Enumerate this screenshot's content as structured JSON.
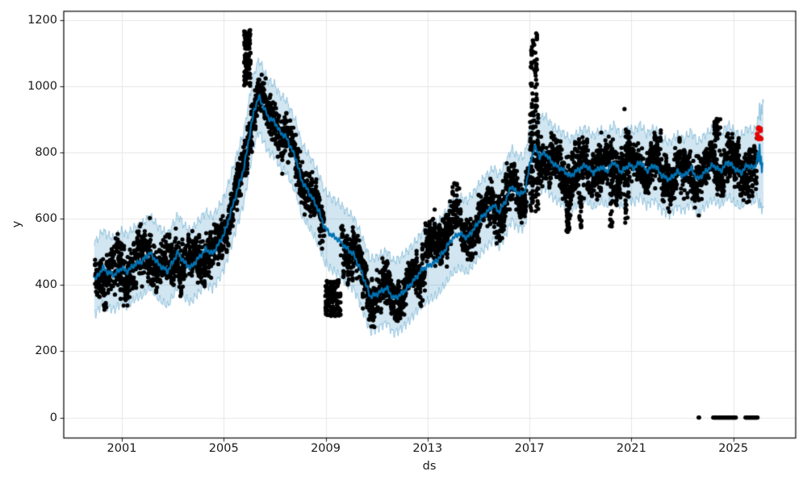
{
  "chart_data": {
    "type": "scatter",
    "title": "",
    "xlabel": "ds",
    "ylabel": "y",
    "x_ticks": [
      2001,
      2005,
      2009,
      2013,
      2017,
      2021,
      2025
    ],
    "y_ticks": [
      0,
      200,
      400,
      600,
      800,
      1000,
      1200
    ],
    "x_range": [
      1998.72,
      2027.45
    ],
    "y_range": [
      -62,
      1226
    ],
    "grid": true,
    "legend": null,
    "history_start": 1999.92,
    "history_end": 2025.93,
    "forecast_end": 2026.15,
    "band_end": 2026.2,
    "seed": 11,
    "marker_radius": 2.6,
    "anomaly_radius": 3.0,
    "colors": {
      "line": "#0072B2",
      "band_fill": "rgba(0,114,178,0.18)",
      "band_edge": "rgba(0,114,178,0.32)",
      "dots": "#000000",
      "anomaly": "#e60000",
      "grid": "#e6e6e6",
      "spine": "#000000",
      "tick_text": "#1a1a1a"
    },
    "band": {
      "low": 105,
      "high": 112,
      "end_widen_start": 2025.9,
      "end_extra": 42
    },
    "forecast_line": [
      [
        2000.0,
        420
      ],
      [
        2000.25,
        452
      ],
      [
        2000.45,
        438
      ],
      [
        2000.7,
        430
      ],
      [
        2001.0,
        452
      ],
      [
        2001.2,
        440
      ],
      [
        2001.5,
        462
      ],
      [
        2001.8,
        472
      ],
      [
        2002.1,
        497
      ],
      [
        2002.45,
        462
      ],
      [
        2002.8,
        441
      ],
      [
        2003.0,
        470
      ],
      [
        2003.2,
        499
      ],
      [
        2003.45,
        468
      ],
      [
        2003.7,
        452
      ],
      [
        2004.0,
        480
      ],
      [
        2004.3,
        509
      ],
      [
        2004.55,
        494
      ],
      [
        2004.8,
        523
      ],
      [
        2005.05,
        560
      ],
      [
        2005.3,
        626
      ],
      [
        2005.55,
        690
      ],
      [
        2005.8,
        755
      ],
      [
        2006.0,
        848
      ],
      [
        2006.2,
        930
      ],
      [
        2006.38,
        968
      ],
      [
        2006.55,
        940
      ],
      [
        2006.75,
        905
      ],
      [
        2007.0,
        893
      ],
      [
        2007.2,
        862
      ],
      [
        2007.45,
        846
      ],
      [
        2007.65,
        812
      ],
      [
        2007.85,
        778
      ],
      [
        2008.05,
        716
      ],
      [
        2008.3,
        685
      ],
      [
        2008.55,
        652
      ],
      [
        2008.75,
        620
      ],
      [
        2008.95,
        574
      ],
      [
        2009.2,
        552
      ],
      [
        2009.5,
        537
      ],
      [
        2009.8,
        512
      ],
      [
        2010.1,
        492
      ],
      [
        2010.4,
        440
      ],
      [
        2010.75,
        365
      ],
      [
        2011.0,
        372
      ],
      [
        2011.2,
        382
      ],
      [
        2011.4,
        391
      ],
      [
        2011.65,
        360
      ],
      [
        2011.9,
        368
      ],
      [
        2012.15,
        386
      ],
      [
        2012.45,
        412
      ],
      [
        2012.8,
        448
      ],
      [
        2013.05,
        458
      ],
      [
        2013.35,
        472
      ],
      [
        2013.65,
        502
      ],
      [
        2013.95,
        538
      ],
      [
        2014.25,
        556
      ],
      [
        2014.55,
        542
      ],
      [
        2014.85,
        572
      ],
      [
        2015.1,
        602
      ],
      [
        2015.35,
        622
      ],
      [
        2015.6,
        641
      ],
      [
        2015.8,
        620
      ],
      [
        2016.05,
        652
      ],
      [
        2016.3,
        700
      ],
      [
        2016.5,
        678
      ],
      [
        2016.8,
        676
      ],
      [
        2017.0,
        758
      ],
      [
        2017.2,
        818
      ],
      [
        2017.4,
        788
      ],
      [
        2017.6,
        800
      ],
      [
        2017.8,
        778
      ],
      [
        2018.0,
        762
      ],
      [
        2018.3,
        748
      ],
      [
        2018.6,
        728
      ],
      [
        2018.9,
        747
      ],
      [
        2019.2,
        762
      ],
      [
        2019.5,
        738
      ],
      [
        2019.8,
        756
      ],
      [
        2020.05,
        744
      ],
      [
        2020.3,
        772
      ],
      [
        2020.6,
        740
      ],
      [
        2020.9,
        763
      ],
      [
        2021.1,
        752
      ],
      [
        2021.35,
        772
      ],
      [
        2021.6,
        744
      ],
      [
        2021.9,
        762
      ],
      [
        2022.2,
        730
      ],
      [
        2022.5,
        718
      ],
      [
        2022.8,
        742
      ],
      [
        2023.05,
        728
      ],
      [
        2023.35,
        752
      ],
      [
        2023.6,
        718
      ],
      [
        2023.9,
        742
      ],
      [
        2024.2,
        762
      ],
      [
        2024.5,
        744
      ],
      [
        2024.8,
        772
      ],
      [
        2025.05,
        752
      ],
      [
        2025.3,
        738
      ],
      [
        2025.55,
        762
      ],
      [
        2025.8,
        752
      ],
      [
        2025.95,
        778
      ],
      [
        2026.0,
        760
      ],
      [
        2026.03,
        812
      ],
      [
        2026.06,
        752
      ],
      [
        2026.09,
        800
      ],
      [
        2026.12,
        758
      ],
      [
        2026.15,
        792
      ]
    ],
    "scatter_segments": [
      {
        "kind": "track",
        "x0": 1999.95,
        "x1": 2004.6,
        "n": 520,
        "spread": 34,
        "wave": 36,
        "bias": 0
      },
      {
        "kind": "track",
        "x0": 2004.6,
        "x1": 2006.45,
        "n": 240,
        "spread": 30,
        "wave": 20,
        "bias": 8
      },
      {
        "kind": "box",
        "x0": 2005.8,
        "x1": 2006.05,
        "n": 70,
        "y0": 1000,
        "y1": 1170
      },
      {
        "kind": "track",
        "x0": 2006.45,
        "x1": 2008.95,
        "n": 300,
        "spread": 32,
        "wave": 22,
        "bias": 0
      },
      {
        "kind": "box",
        "x0": 2008.98,
        "x1": 2009.6,
        "n": 90,
        "y0": 305,
        "y1": 415
      },
      {
        "kind": "track",
        "x0": 2009.6,
        "x1": 2012.9,
        "n": 380,
        "spread": 30,
        "wave": 26,
        "bias": 0
      },
      {
        "kind": "track",
        "x0": 2012.9,
        "x1": 2014.3,
        "n": 170,
        "spread": 28,
        "wave": 20,
        "bias": 55
      },
      {
        "kind": "track",
        "x0": 2014.3,
        "x1": 2016.95,
        "n": 300,
        "spread": 30,
        "wave": 24,
        "bias": 0
      },
      {
        "kind": "box",
        "x0": 2017.05,
        "x1": 2017.3,
        "n": 40,
        "y0": 900,
        "y1": 1160
      },
      {
        "kind": "box",
        "x0": 2017.02,
        "x1": 2017.35,
        "n": 80,
        "y0": 620,
        "y1": 920
      },
      {
        "kind": "track",
        "x0": 2017.35,
        "x1": 2025.93,
        "n": 1050,
        "spread": 33,
        "wave": 26,
        "bias": 0
      },
      {
        "kind": "box",
        "x0": 2018.45,
        "x1": 2018.62,
        "n": 26,
        "y0": 560,
        "y1": 680
      },
      {
        "kind": "box",
        "x0": 2018.95,
        "x1": 2019.05,
        "n": 14,
        "y0": 570,
        "y1": 680
      },
      {
        "kind": "box",
        "x0": 2020.15,
        "x1": 2020.28,
        "n": 14,
        "y0": 570,
        "y1": 680
      },
      {
        "kind": "box",
        "x0": 2020.75,
        "x1": 2020.9,
        "n": 30,
        "y0": 585,
        "y1": 870
      },
      {
        "kind": "box",
        "x0": 2024.25,
        "x1": 2024.5,
        "n": 20,
        "y0": 840,
        "y1": 905
      }
    ],
    "outlier_points": [
      [
        2020.73,
        931
      ],
      [
        2002.1,
        602
      ]
    ],
    "zero_runs": [
      {
        "x0": 2023.64,
        "x1": 2023.66,
        "n": 2
      },
      {
        "x0": 2024.21,
        "x1": 2025.1,
        "n": 42
      },
      {
        "x0": 2025.48,
        "x1": 2025.95,
        "n": 24
      }
    ],
    "zero_value": 0,
    "anomalies": {
      "x0": 2025.93,
      "x1": 2026.12,
      "n": 10,
      "y0": 833,
      "y1": 877
    }
  }
}
